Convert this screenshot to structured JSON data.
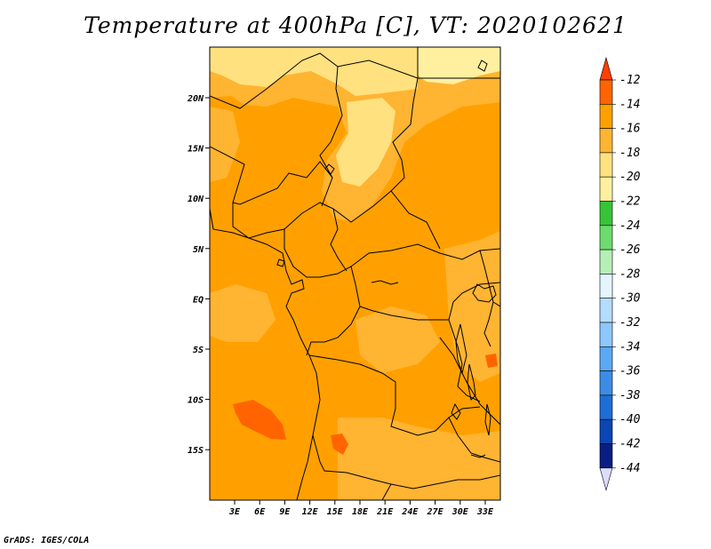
{
  "title": "Temperature at 400hPa [C], VT: 2020102621",
  "footer": "GrADS: IGES/COLA",
  "map": {
    "lon_range": [
      0,
      35
    ],
    "lat_range": [
      -20,
      25
    ],
    "x_ticks": [
      "3E",
      "6E",
      "9E",
      "12E",
      "15E",
      "18E",
      "21E",
      "24E",
      "27E",
      "30E",
      "33E"
    ],
    "y_ticks": [
      "20N",
      "15N",
      "10N",
      "5N",
      "EQ",
      "5S",
      "10S",
      "15S"
    ],
    "fill_colors": {
      "dominant": "#ffa000",
      "warm_band": "#ffb432",
      "light": "#ffe17f",
      "pale": "#fff0a0",
      "hot_spot": "#ff6400"
    }
  },
  "colorbar": {
    "labels": [
      "-12",
      "-14",
      "-16",
      "-18",
      "-20",
      "-22",
      "-24",
      "-26",
      "-28",
      "-30",
      "-32",
      "-34",
      "-36",
      "-38",
      "-40",
      "-42",
      "-44"
    ],
    "colors": [
      "#ff4000",
      "#ff6400",
      "#ffa000",
      "#ffb432",
      "#ffe17f",
      "#fff0a0",
      "#36c536",
      "#6ddb6d",
      "#b6efb6",
      "#e3f5ff",
      "#b4dcff",
      "#8cc8ff",
      "#5aa9f5",
      "#3c8ce6",
      "#1e6ed7",
      "#0a46b4",
      "#0a1e82",
      "#dcdcff"
    ]
  }
}
